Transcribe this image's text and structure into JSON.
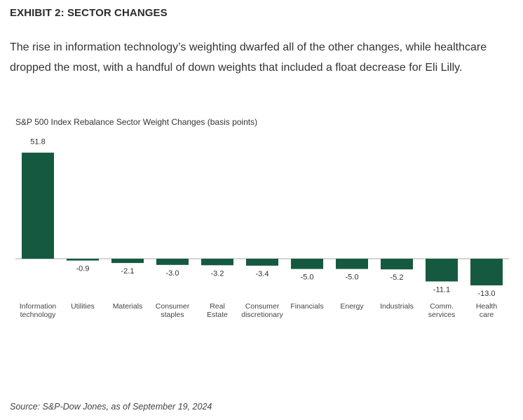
{
  "header": {
    "exhibit_title": "EXHIBIT 2: SECTOR CHANGES",
    "intro_line_1": "The rise in information technology’s weighting dwarfed all of the other changes, while healthcare",
    "intro_line_2": "dropped the most, with a handful of down weights that included a float decrease for Eli Lilly."
  },
  "chart_data": {
    "type": "bar",
    "title": "S&P 500 Index Rebalance Sector Weight Changes (basis points)",
    "xlabel": "",
    "ylabel": "",
    "categories": [
      [
        "Information",
        "technology"
      ],
      [
        "Utilities"
      ],
      [
        "Materials"
      ],
      [
        "Consumer",
        "staples"
      ],
      [
        "Real",
        "Estate"
      ],
      [
        "Consumer",
        "discretionary"
      ],
      [
        "Financials"
      ],
      [
        "Energy"
      ],
      [
        "Industrials"
      ],
      [
        "Comm.",
        "services"
      ],
      [
        "Health",
        "care"
      ]
    ],
    "values": [
      51.8,
      -0.9,
      -2.1,
      -3.0,
      -3.2,
      -3.4,
      -5.0,
      -5.0,
      -5.2,
      -11.1,
      -13.0
    ],
    "value_labels": [
      "51.8",
      "-0.9",
      "-2.1",
      "-3.0",
      "-3.2",
      "-3.4",
      "-5.0",
      "-5.0",
      "-5.2",
      "-11.1",
      "-13.0"
    ],
    "bar_color": "#155a40",
    "axis_color": "#aaaaaa",
    "grid": false,
    "legend": "none"
  },
  "footer": {
    "source": "Source: S&P-Dow Jones, as of September 19, 2024"
  }
}
